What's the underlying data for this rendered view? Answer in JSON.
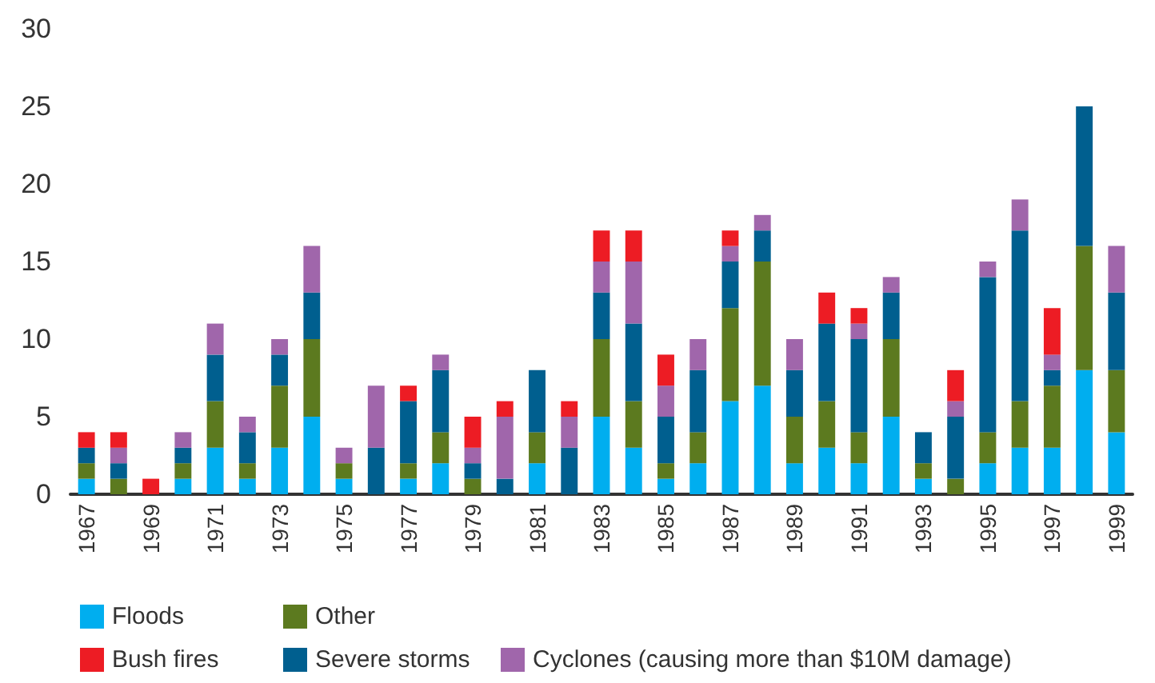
{
  "chart_data": {
    "type": "bar",
    "stacked": true,
    "categories": [
      "1967",
      null,
      "1969",
      null,
      "1971",
      null,
      "1973",
      null,
      "1975",
      null,
      "1977",
      null,
      "1979",
      null,
      "1981",
      null,
      "1983",
      null,
      "1985",
      null,
      "1987",
      null,
      "1989",
      null,
      "1991",
      null,
      "1993",
      null,
      "1995",
      null,
      "1997",
      null,
      "1999"
    ],
    "series": [
      {
        "name": "Floods",
        "color": "#00aeef",
        "values": [
          1,
          0,
          0,
          1,
          3,
          1,
          3,
          5,
          1,
          0,
          1,
          2,
          0,
          0,
          2,
          0,
          5,
          3,
          1,
          2,
          6,
          7,
          2,
          3,
          2,
          5,
          1,
          0,
          2,
          3,
          3,
          8,
          4
        ]
      },
      {
        "name": "Other",
        "color": "#5c7a1f",
        "values": [
          1,
          1,
          0,
          1,
          3,
          1,
          4,
          5,
          1,
          0,
          1,
          2,
          1,
          0,
          2,
          0,
          5,
          3,
          1,
          2,
          6,
          8,
          3,
          3,
          2,
          5,
          1,
          1,
          2,
          3,
          4,
          8,
          4
        ]
      },
      {
        "name": "Severe storms",
        "color": "#005f8f",
        "values": [
          1,
          1,
          0,
          1,
          3,
          2,
          2,
          3,
          0,
          3,
          4,
          4,
          1,
          1,
          4,
          3,
          3,
          5,
          3,
          4,
          3,
          2,
          3,
          5,
          6,
          3,
          2,
          4,
          10,
          11,
          1,
          9,
          5
        ]
      },
      {
        "name": "Cyclones (causing more than $10M damage)",
        "color": "#a066ab",
        "values": [
          0,
          1,
          0,
          1,
          2,
          1,
          1,
          3,
          1,
          4,
          0,
          1,
          1,
          4,
          0,
          2,
          2,
          4,
          2,
          2,
          1,
          1,
          2,
          0,
          1,
          1,
          0,
          1,
          1,
          2,
          1,
          0,
          3
        ]
      },
      {
        "name": "Bush fires",
        "color": "#ed1c24",
        "values": [
          1,
          1,
          1,
          0,
          0,
          0,
          0,
          0,
          0,
          0,
          1,
          0,
          2,
          1,
          0,
          1,
          2,
          2,
          2,
          0,
          1,
          0,
          0,
          2,
          1,
          0,
          0,
          2,
          0,
          0,
          3,
          0,
          0
        ]
      }
    ],
    "ylim": [
      0,
      30
    ],
    "yticks": [
      0,
      5,
      10,
      15,
      20,
      25,
      30
    ],
    "grid": false,
    "legend": "bottom"
  }
}
